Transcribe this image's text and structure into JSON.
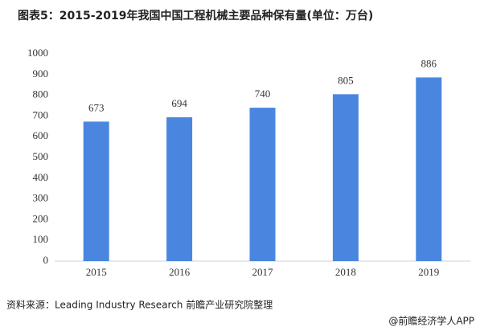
{
  "chart_data": {
    "type": "bar",
    "title": "图表5：2015-2019年我国中国工程机械主要品种保有量(单位：万台)",
    "categories": [
      "2015",
      "2016",
      "2017",
      "2018",
      "2019"
    ],
    "values": [
      673,
      694,
      740,
      805,
      886
    ],
    "color": "#4a86e0",
    "ylim": [
      0,
      1000
    ],
    "yticks": [
      0,
      100,
      200,
      300,
      400,
      500,
      600,
      700,
      800,
      900,
      1000
    ],
    "grid": false,
    "source": "资料来源：Leading Industry Research 前瞻产业研究院整理",
    "footer": "@前瞻经济学人APP"
  }
}
